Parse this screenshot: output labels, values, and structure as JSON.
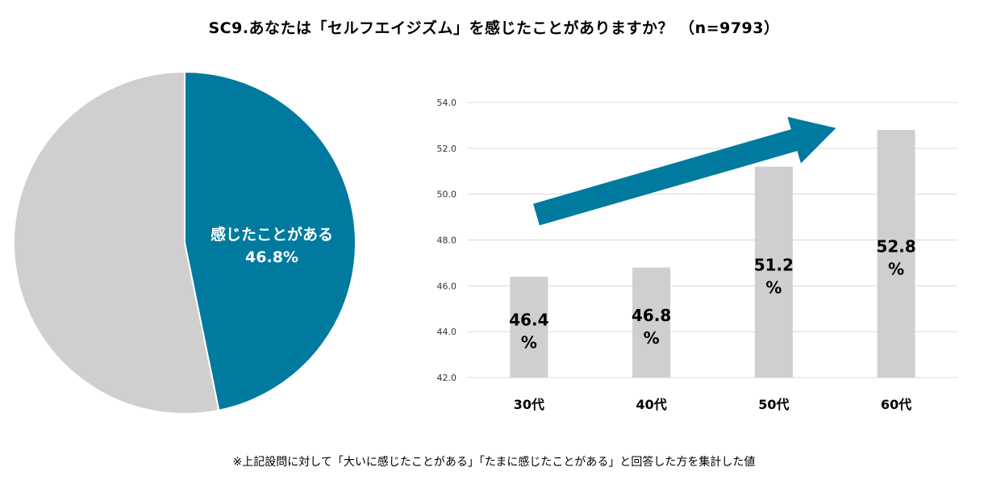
{
  "title": "SC9.あなたは「セルフエイジズム」を感じたことがありますか？ （n=9793）",
  "footnote": "※上記設問に対して「大いに感じたことがある」「たまに感じたことがある」と回答した方を集計した値",
  "colors": {
    "accent": "#007a9e",
    "gray": "#d0cece",
    "grid": "#d9d9d9"
  },
  "chart_data": [
    {
      "type": "pie",
      "slices": [
        {
          "label": "感じたことがある",
          "value": 46.8,
          "value_label": "46.8%",
          "color": "#007a9e"
        },
        {
          "label": "",
          "value": 53.2,
          "color": "#d0cece"
        }
      ]
    },
    {
      "type": "bar",
      "categories": [
        "30代",
        "40代",
        "50代",
        "60代"
      ],
      "values": [
        46.4,
        46.8,
        51.2,
        52.8
      ],
      "data_labels": [
        [
          "46.4",
          "%"
        ],
        [
          "46.8",
          "%"
        ],
        [
          "51.2",
          "%"
        ],
        [
          "52.8",
          "%"
        ]
      ],
      "ylim": [
        42.0,
        54.0
      ],
      "yticks": [
        "42.0",
        "44.0",
        "46.0",
        "48.0",
        "50.0",
        "52.0",
        "54.0"
      ],
      "grid": true,
      "annotation": "upward-trend-arrow"
    }
  ]
}
